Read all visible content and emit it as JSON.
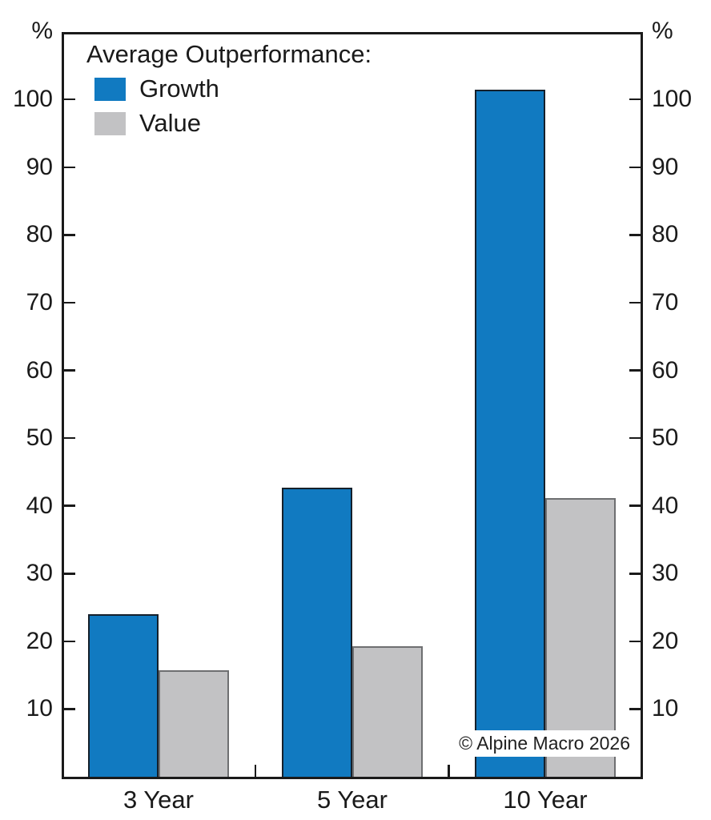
{
  "chart_data": {
    "type": "bar",
    "title": "Average Outperformance:",
    "unit_left": "%",
    "unit_right": "%",
    "categories": [
      "3 Year",
      "5 Year",
      "10 Year"
    ],
    "series": [
      {
        "name": "Growth",
        "color": "#117ac1",
        "border_color": "#15202b",
        "values": [
          24,
          42.7,
          101.5
        ]
      },
      {
        "name": "Value",
        "color": "#c2c2c4",
        "border_color": "#6e6f71",
        "values": [
          15.7,
          19.3,
          41.1
        ]
      }
    ],
    "y_ticks": [
      10,
      20,
      30,
      40,
      50,
      60,
      70,
      80,
      90,
      100
    ],
    "ylim": [
      0,
      109.6
    ],
    "grid": false,
    "legend_position": "top-left",
    "axis_color": "#1a1a1a",
    "watermark": "© Alpine Macro 2026"
  }
}
